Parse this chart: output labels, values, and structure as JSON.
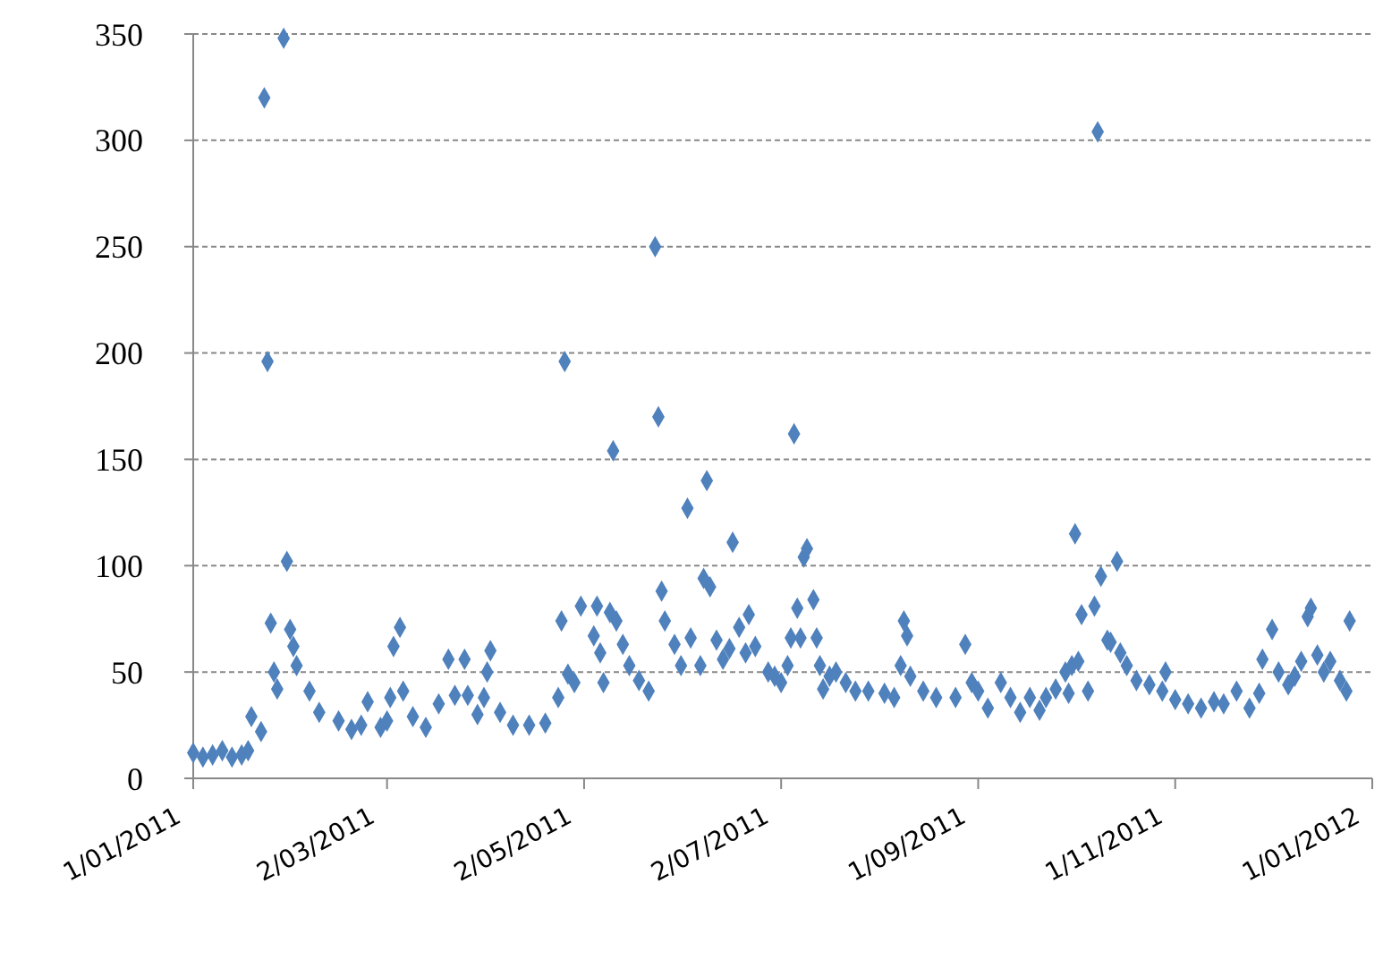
{
  "chart_data": {
    "type": "scatter",
    "marker": "diamond",
    "grid": "y",
    "line_style": "dashed",
    "xlim": [
      "2011-01-01",
      "2012-01-01"
    ],
    "xticks": [
      {
        "value": "2011-01-01",
        "label": "1/01/2011"
      },
      {
        "value": "2011-03-02",
        "label": "2/03/2011"
      },
      {
        "value": "2011-05-02",
        "label": "2/05/2011"
      },
      {
        "value": "2011-07-02",
        "label": "2/07/2011"
      },
      {
        "value": "2011-09-01",
        "label": "1/09/2011"
      },
      {
        "value": "2011-11-01",
        "label": "1/11/2011"
      },
      {
        "value": "2012-01-01",
        "label": "1/01/2012"
      }
    ],
    "ylim": [
      0,
      350
    ],
    "yticks": [
      0,
      50,
      100,
      150,
      200,
      250,
      300,
      350
    ],
    "x": [
      "2011-01-01",
      "2011-01-04",
      "2011-01-07",
      "2011-01-10",
      "2011-01-13",
      "2011-01-16",
      "2011-01-18",
      "2011-01-19",
      "2011-01-22",
      "2011-01-23",
      "2011-01-24",
      "2011-01-25",
      "2011-01-26",
      "2011-01-27",
      "2011-01-29",
      "2011-01-30",
      "2011-01-31",
      "2011-02-01",
      "2011-02-02",
      "2011-02-06",
      "2011-02-09",
      "2011-02-15",
      "2011-02-19",
      "2011-02-22",
      "2011-02-24",
      "2011-02-28",
      "2011-03-02",
      "2011-03-03",
      "2011-03-04",
      "2011-03-06",
      "2011-03-07",
      "2011-03-10",
      "2011-03-14",
      "2011-03-18",
      "2011-03-21",
      "2011-03-23",
      "2011-03-26",
      "2011-03-27",
      "2011-03-30",
      "2011-04-01",
      "2011-04-02",
      "2011-04-03",
      "2011-04-06",
      "2011-04-10",
      "2011-04-15",
      "2011-04-20",
      "2011-04-24",
      "2011-04-25",
      "2011-04-26",
      "2011-04-27",
      "2011-04-29",
      "2011-05-01",
      "2011-05-05",
      "2011-05-06",
      "2011-05-07",
      "2011-05-08",
      "2011-05-10",
      "2011-05-11",
      "2011-05-12",
      "2011-05-14",
      "2011-05-16",
      "2011-05-19",
      "2011-05-22",
      "2011-05-24",
      "2011-05-25",
      "2011-05-26",
      "2011-05-27",
      "2011-05-30",
      "2011-06-01",
      "2011-06-03",
      "2011-06-04",
      "2011-06-07",
      "2011-06-08",
      "2011-06-09",
      "2011-06-10",
      "2011-06-12",
      "2011-06-14",
      "2011-06-16",
      "2011-06-17",
      "2011-06-19",
      "2011-06-21",
      "2011-06-22",
      "2011-06-24",
      "2011-06-28",
      "2011-06-30",
      "2011-07-02",
      "2011-07-04",
      "2011-07-05",
      "2011-07-06",
      "2011-07-07",
      "2011-07-08",
      "2011-07-09",
      "2011-07-10",
      "2011-07-12",
      "2011-07-13",
      "2011-07-14",
      "2011-07-15",
      "2011-07-17",
      "2011-07-19",
      "2011-07-22",
      "2011-07-25",
      "2011-07-29",
      "2011-08-03",
      "2011-08-06",
      "2011-08-08",
      "2011-08-09",
      "2011-08-10",
      "2011-08-11",
      "2011-08-15",
      "2011-08-19",
      "2011-08-25",
      "2011-08-28",
      "2011-08-30",
      "2011-09-01",
      "2011-09-04",
      "2011-09-08",
      "2011-09-11",
      "2011-09-14",
      "2011-09-17",
      "2011-09-20",
      "2011-09-22",
      "2011-09-25",
      "2011-09-28",
      "2011-09-29",
      "2011-09-30",
      "2011-10-01",
      "2011-10-02",
      "2011-10-03",
      "2011-10-05",
      "2011-10-07",
      "2011-10-08",
      "2011-10-09",
      "2011-10-11",
      "2011-10-12",
      "2011-10-14",
      "2011-10-15",
      "2011-10-17",
      "2011-10-20",
      "2011-10-24",
      "2011-10-28",
      "2011-10-29",
      "2011-11-01",
      "2011-11-05",
      "2011-11-09",
      "2011-11-13",
      "2011-11-16",
      "2011-11-20",
      "2011-11-24",
      "2011-11-27",
      "2011-11-28",
      "2011-12-01",
      "2011-12-03",
      "2011-12-06",
      "2011-12-08",
      "2011-12-10",
      "2011-12-12",
      "2011-12-13",
      "2011-12-15",
      "2011-12-17",
      "2011-12-19",
      "2011-12-22",
      "2011-12-24",
      "2011-12-25"
    ],
    "series": [
      {
        "color": "#4f81bd",
        "values": [
          12,
          10,
          11,
          13,
          10,
          11,
          13,
          29,
          22,
          320,
          196,
          73,
          50,
          42,
          348,
          102,
          70,
          62,
          53,
          41,
          31,
          27,
          23,
          25,
          36,
          24,
          27,
          38,
          62,
          71,
          41,
          29,
          24,
          35,
          56,
          39,
          56,
          39,
          30,
          38,
          50,
          60,
          31,
          25,
          25,
          26,
          38,
          74,
          196,
          49,
          45,
          81,
          67,
          81,
          59,
          45,
          78,
          154,
          74,
          63,
          53,
          46,
          41,
          250,
          170,
          88,
          74,
          63,
          53,
          127,
          66,
          53,
          94,
          140,
          90,
          65,
          56,
          61,
          111,
          71,
          59,
          77,
          62,
          50,
          48,
          45,
          53,
          66,
          162,
          80,
          66,
          104,
          108,
          84,
          66,
          53,
          42,
          48,
          50,
          45,
          41,
          41,
          40,
          38,
          53,
          74,
          67,
          48,
          41,
          38,
          38,
          63,
          45,
          41,
          33,
          45,
          38,
          31,
          38,
          32,
          38,
          42,
          50,
          40,
          53,
          115,
          55,
          77,
          41,
          81,
          304,
          95,
          65,
          64,
          102,
          59,
          53,
          46,
          44,
          41,
          50,
          37,
          35,
          33,
          36,
          35,
          41,
          33,
          40,
          56,
          70,
          50,
          44,
          48,
          55,
          76,
          80,
          58,
          50,
          55,
          46,
          41,
          74
        ]
      }
    ]
  }
}
